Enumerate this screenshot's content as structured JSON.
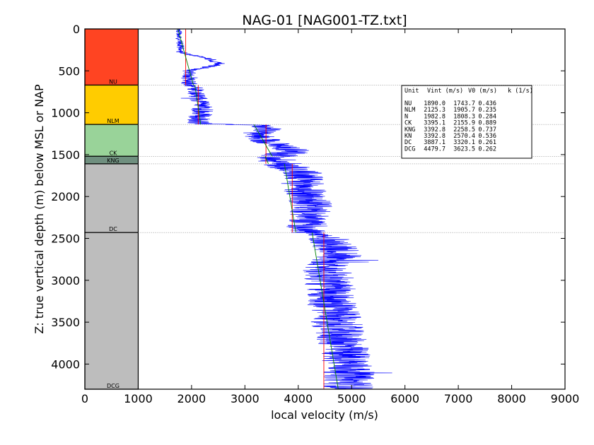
{
  "chart_data": {
    "type": "line",
    "title": "NAG-01 [NAG001-TZ.txt]",
    "xlabel": "local velocity (m/s)",
    "ylabel": "Z: true vertical depth (m) below MSL or NAP",
    "xlim": [
      0,
      9000
    ],
    "ylim": [
      4300,
      0
    ],
    "y_inverted": true,
    "x_ticks": [
      0,
      1000,
      2000,
      3000,
      4000,
      5000,
      6000,
      7000,
      8000,
      9000
    ],
    "y_ticks": [
      0,
      500,
      1000,
      1500,
      2000,
      2500,
      3000,
      3500,
      4000
    ],
    "grid": false,
    "units": [
      {
        "name": "NU",
        "top": 0,
        "base": 670,
        "color": "#ff4422"
      },
      {
        "name": "NLM",
        "top": 670,
        "base": 1140,
        "color": "#ffcc00"
      },
      {
        "name": "CK",
        "top": 1140,
        "base": 1520,
        "color": "#99d399"
      },
      {
        "name": "KNG",
        "top": 1520,
        "base": 1610,
        "color": "#6f8f7f"
      },
      {
        "name": "DC",
        "top": 1610,
        "base": 2430,
        "color": "#bdbdbd"
      },
      {
        "name": "DCG",
        "top": 2430,
        "base": 4300,
        "color": "#bdbdbd"
      }
    ],
    "legend": {
      "position": "right",
      "header": [
        "Unit",
        "Vint (m/s)",
        "V0 (m/s)",
        "k (1/s)"
      ],
      "rows": [
        [
          "NU",
          "1890.0",
          "1743.7",
          "0.436"
        ],
        [
          "NLM",
          "2125.3",
          "1905.7",
          "0.235"
        ],
        [
          "N",
          "1982.8",
          "1808.3",
          "0.284"
        ],
        [
          "CK",
          "3395.1",
          "2155.9",
          "0.889"
        ],
        [
          "KNG",
          "3392.8",
          "2258.5",
          "0.737"
        ],
        [
          "KN",
          "3392.8",
          "2570.4",
          "0.536"
        ],
        [
          "DC",
          "3887.1",
          "3320.1",
          "0.261"
        ],
        [
          "DCG",
          "4479.7",
          "3623.5",
          "0.262"
        ]
      ]
    },
    "series": [
      {
        "color": "#0000ff",
        "profile": [
          [
            0,
            1750
          ],
          [
            280,
            1800
          ],
          [
            350,
            2300
          ],
          [
            420,
            2550
          ],
          [
            500,
            1950
          ],
          [
            650,
            1950
          ],
          [
            700,
            2050
          ],
          [
            800,
            2100
          ],
          [
            950,
            2200
          ],
          [
            1050,
            2150
          ],
          [
            1130,
            2150
          ],
          [
            1150,
            3250
          ],
          [
            1200,
            3450
          ],
          [
            1250,
            3200
          ],
          [
            1350,
            3450
          ],
          [
            1450,
            3950
          ],
          [
            1520,
            3600
          ],
          [
            1600,
            3650
          ],
          [
            1700,
            4050
          ],
          [
            1900,
            4100
          ],
          [
            2100,
            4250
          ],
          [
            2300,
            4150
          ],
          [
            2430,
            4200
          ],
          [
            2500,
            4550
          ],
          [
            2700,
            4800
          ],
          [
            2800,
            4500
          ],
          [
            2900,
            4550
          ],
          [
            3100,
            4600
          ],
          [
            3300,
            4650
          ],
          [
            3600,
            4750
          ],
          [
            3800,
            4850
          ],
          [
            4000,
            4950
          ],
          [
            4300,
            4950
          ]
        ],
        "noise": [
          [
            0,
            60
          ],
          [
            300,
            90
          ],
          [
            650,
            150
          ],
          [
            1150,
            250
          ],
          [
            1600,
            420
          ],
          [
            2430,
            380
          ],
          [
            3000,
            480
          ],
          [
            4300,
            480
          ]
        ]
      },
      {
        "color": "#ff0000",
        "segments": [
          [
            [
              1890.0,
              0
            ],
            [
              1890.0,
              670
            ]
          ],
          [
            [
              2125.3,
              670
            ],
            [
              2125.3,
              1140
            ]
          ],
          [
            [
              3395.1,
              1140
            ],
            [
              3395.1,
              1520
            ]
          ],
          [
            [
              3392.8,
              1520
            ],
            [
              3392.8,
              1610
            ]
          ],
          [
            [
              3887.1,
              1610
            ],
            [
              3887.1,
              2430
            ]
          ],
          [
            [
              4479.7,
              2430
            ],
            [
              4479.7,
              4300
            ]
          ]
        ]
      },
      {
        "color": "#008000",
        "segments": [
          [
            [
              1743.7,
              0
            ],
            [
              2035,
              670
            ]
          ],
          [
            [
              2062,
              670
            ],
            [
              2172,
              1140
            ]
          ],
          [
            [
              3170,
              1140
            ],
            [
              3510,
              1520
            ]
          ],
          [
            [
              3380,
              1520
            ],
            [
              3440,
              1610
            ]
          ],
          [
            [
              3740,
              1610
            ],
            [
              3955,
              2430
            ]
          ],
          [
            [
              4260,
              2430
            ],
            [
              4750,
              4300
            ]
          ]
        ]
      }
    ]
  }
}
